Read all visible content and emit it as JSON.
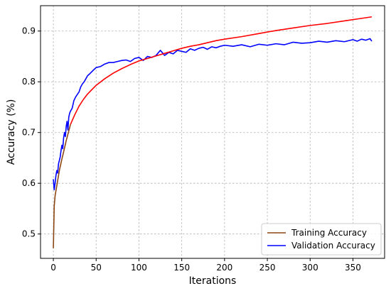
{
  "chart_data": {
    "type": "line",
    "title": "",
    "xlabel": "Iterations",
    "ylabel": "Accuracy (%)",
    "xlim": [
      -15,
      387
    ],
    "ylim": [
      0.452,
      0.95
    ],
    "x_ticks": [
      0,
      50,
      100,
      150,
      200,
      250,
      300,
      350
    ],
    "y_ticks": [
      0.5,
      0.6,
      0.7,
      0.8,
      0.9
    ],
    "grid": true,
    "legend_position": "lower-right",
    "series": [
      {
        "name": "Training Accuracy",
        "color": "#ff0000",
        "initial_color": "#8b4513",
        "initial_until_x": 20,
        "x": [
          0,
          1,
          2,
          3,
          5,
          7,
          10,
          12,
          15,
          18,
          20,
          25,
          30,
          35,
          40,
          50,
          60,
          70,
          80,
          90,
          100,
          110,
          120,
          130,
          140,
          150,
          160,
          170,
          180,
          190,
          200,
          220,
          240,
          260,
          280,
          300,
          320,
          340,
          360,
          372
        ],
        "y": [
          0.472,
          0.555,
          0.575,
          0.585,
          0.605,
          0.625,
          0.648,
          0.662,
          0.684,
          0.703,
          0.716,
          0.735,
          0.752,
          0.765,
          0.776,
          0.793,
          0.806,
          0.817,
          0.826,
          0.834,
          0.841,
          0.846,
          0.851,
          0.856,
          0.861,
          0.866,
          0.87,
          0.873,
          0.877,
          0.881,
          0.884,
          0.889,
          0.895,
          0.901,
          0.906,
          0.911,
          0.915,
          0.92,
          0.925,
          0.928
        ]
      },
      {
        "name": "Validation Accuracy",
        "color": "#0000ff",
        "x": [
          0,
          1,
          2,
          3,
          4,
          5,
          6,
          7,
          8,
          9,
          10,
          11,
          12,
          13,
          14,
          15,
          16,
          17,
          18,
          19,
          20,
          22,
          24,
          26,
          28,
          30,
          32,
          34,
          36,
          38,
          40,
          42,
          45,
          48,
          50,
          55,
          60,
          65,
          70,
          75,
          80,
          85,
          90,
          95,
          100,
          105,
          110,
          115,
          120,
          125,
          130,
          135,
          140,
          145,
          150,
          155,
          160,
          165,
          170,
          175,
          180,
          185,
          190,
          195,
          200,
          210,
          220,
          230,
          240,
          250,
          260,
          270,
          280,
          290,
          300,
          310,
          320,
          330,
          340,
          350,
          355,
          360,
          365,
          370,
          372
        ],
        "y": [
          0.608,
          0.587,
          0.6,
          0.615,
          0.625,
          0.62,
          0.638,
          0.645,
          0.652,
          0.665,
          0.675,
          0.668,
          0.69,
          0.7,
          0.692,
          0.712,
          0.722,
          0.705,
          0.73,
          0.738,
          0.742,
          0.748,
          0.763,
          0.77,
          0.775,
          0.78,
          0.79,
          0.796,
          0.8,
          0.806,
          0.812,
          0.815,
          0.82,
          0.825,
          0.828,
          0.83,
          0.835,
          0.838,
          0.838,
          0.84,
          0.842,
          0.843,
          0.84,
          0.846,
          0.848,
          0.842,
          0.85,
          0.848,
          0.852,
          0.862,
          0.852,
          0.858,
          0.855,
          0.862,
          0.86,
          0.858,
          0.865,
          0.862,
          0.866,
          0.868,
          0.864,
          0.869,
          0.867,
          0.87,
          0.872,
          0.87,
          0.873,
          0.869,
          0.874,
          0.872,
          0.875,
          0.873,
          0.878,
          0.876,
          0.877,
          0.88,
          0.878,
          0.881,
          0.879,
          0.883,
          0.88,
          0.884,
          0.882,
          0.885,
          0.88
        ]
      }
    ]
  }
}
